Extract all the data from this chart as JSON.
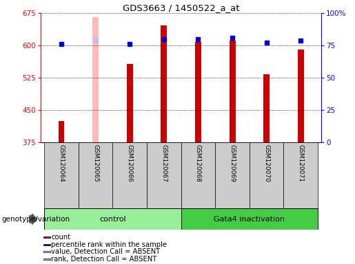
{
  "title": "GDS3663 / 1450522_a_at",
  "samples": [
    "GSM120064",
    "GSM120065",
    "GSM120066",
    "GSM120067",
    "GSM120068",
    "GSM120069",
    "GSM120070",
    "GSM120071"
  ],
  "red_values": [
    425,
    665,
    557,
    647,
    609,
    611,
    533,
    591
  ],
  "blue_values": [
    76,
    79,
    76,
    80,
    80,
    81,
    77,
    79
  ],
  "absent_flags": [
    false,
    true,
    false,
    false,
    false,
    false,
    false,
    false
  ],
  "ylim_left": [
    375,
    675
  ],
  "ylim_right": [
    0,
    100
  ],
  "yticks_left": [
    375,
    450,
    525,
    600,
    675
  ],
  "yticks_right": [
    0,
    25,
    50,
    75,
    100
  ],
  "ytick_labels_right": [
    "0",
    "25",
    "50",
    "75",
    "100%"
  ],
  "red_color": "#cc0000",
  "pink_color": "#ffbbbb",
  "blue_color": "#0000cc",
  "lightblue_color": "#bbbbff",
  "bg_color": "#cccccc",
  "groups": [
    {
      "label": "control",
      "indices": [
        0,
        1,
        2,
        3
      ],
      "color": "#99ee99"
    },
    {
      "label": "Gata4 inactivation",
      "indices": [
        4,
        5,
        6,
        7
      ],
      "color": "#44cc44"
    }
  ],
  "legend_items": [
    {
      "color": "#cc0000",
      "label": "count"
    },
    {
      "color": "#0000cc",
      "label": "percentile rank within the sample"
    },
    {
      "color": "#ffbbbb",
      "label": "value, Detection Call = ABSENT"
    },
    {
      "color": "#bbbbff",
      "label": "rank, Detection Call = ABSENT"
    }
  ],
  "genotype_label": "genotype/variation"
}
